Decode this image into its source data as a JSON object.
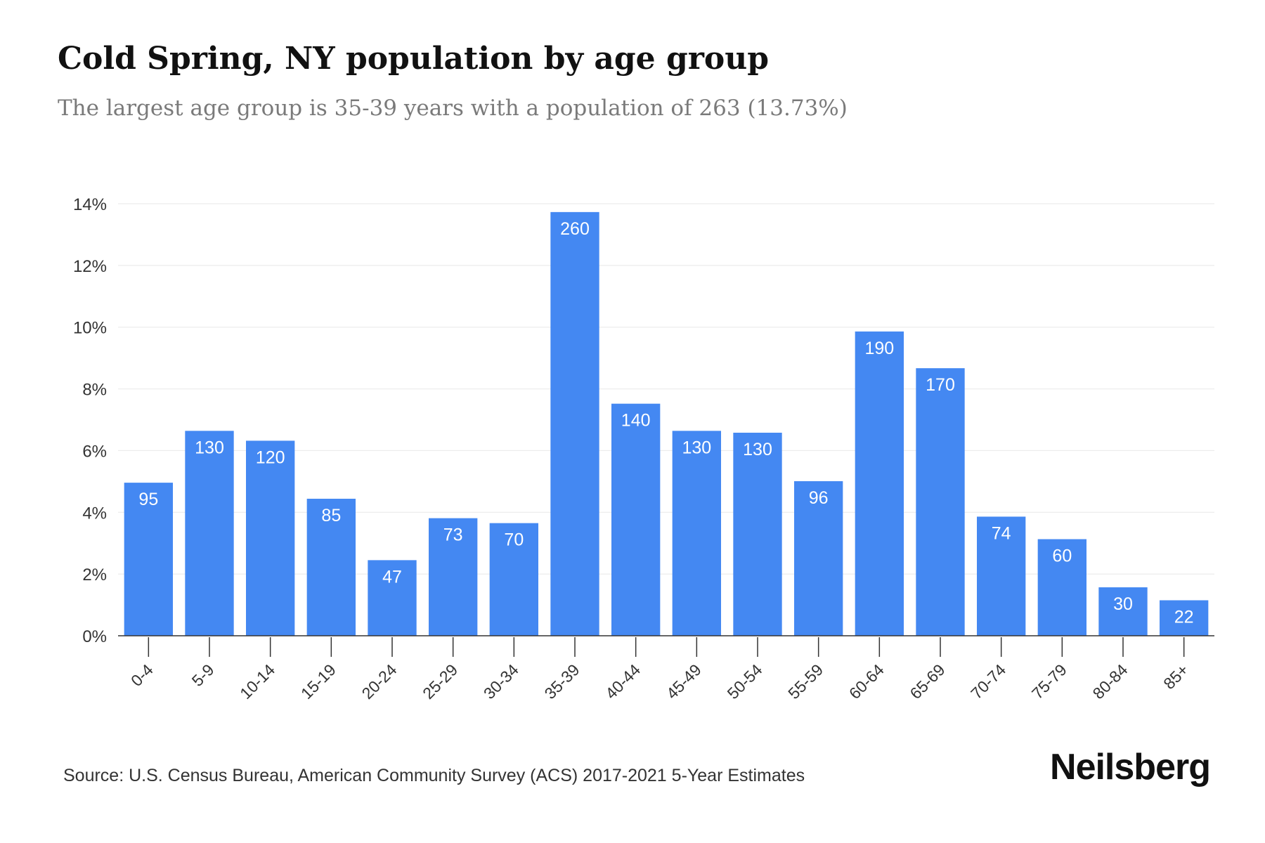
{
  "chart_data": {
    "type": "bar",
    "title": "Cold Spring, NY population by age group",
    "subtitle": "The largest age group is 35-39 years with a population of 263 (13.73%)",
    "categories": [
      "0-4",
      "5-9",
      "10-14",
      "15-19",
      "20-24",
      "25-29",
      "30-34",
      "35-39",
      "40-44",
      "45-49",
      "50-54",
      "55-59",
      "60-64",
      "65-69",
      "70-74",
      "75-79",
      "80-84",
      "85+"
    ],
    "percent_values": [
      4.96,
      6.64,
      6.32,
      4.44,
      2.45,
      3.81,
      3.65,
      13.73,
      7.52,
      6.64,
      6.58,
      5.01,
      9.86,
      8.67,
      3.86,
      3.13,
      1.57,
      1.15
    ],
    "data_labels": [
      "95",
      "130",
      "120",
      "85",
      "47",
      "73",
      "70",
      "260",
      "140",
      "130",
      "130",
      "96",
      "190",
      "170",
      "74",
      "60",
      "30",
      "22"
    ],
    "yticks": [
      "0%",
      "2%",
      "4%",
      "6%",
      "8%",
      "10%",
      "12%",
      "14%"
    ],
    "ytick_values": [
      0,
      2,
      4,
      6,
      8,
      10,
      12,
      14
    ],
    "ylim": [
      0,
      14
    ],
    "grid": true,
    "bar_color": "#4488f2",
    "xlabel": "",
    "ylabel": ""
  },
  "source": "Source: U.S. Census Bureau, American Community Survey (ACS) 2017-2021 5-Year Estimates",
  "brand": "Neilsberg"
}
